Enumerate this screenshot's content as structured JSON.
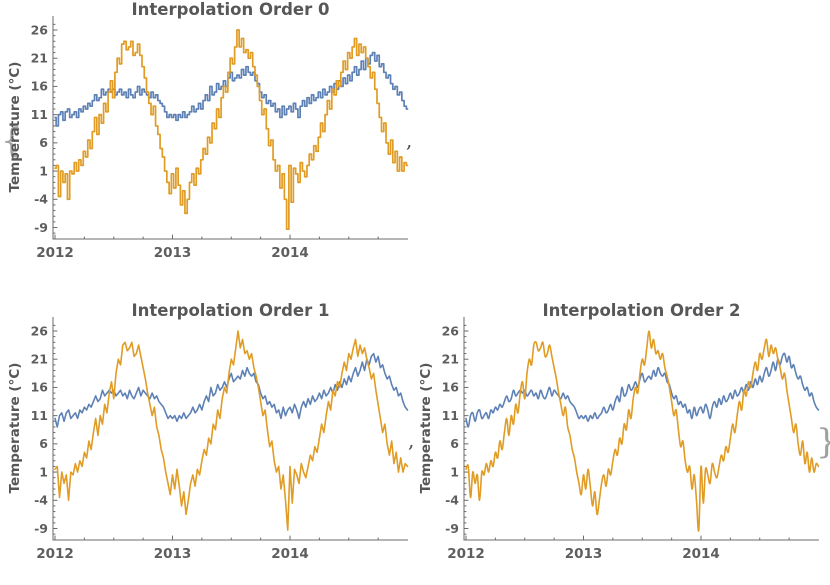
{
  "figure": {
    "background": "#ffffff",
    "open_brace": "{",
    "separator": ",",
    "close_brace": "}",
    "text_color": "#575757",
    "axis_color": "#6b6b6b"
  },
  "chart_data": {
    "type": "line",
    "charts": [
      {
        "title": "Interpolation Order 0",
        "interpolation": "step"
      },
      {
        "title": "Interpolation Order 1",
        "interpolation": "linear"
      },
      {
        "title": "Interpolation Order 2",
        "interpolation": "smooth"
      }
    ],
    "ylabel": "Temperature (°C)",
    "yticks": [
      -9,
      -4,
      1,
      6,
      11,
      16,
      21,
      26
    ],
    "xticks": [
      "2012",
      "2013",
      "2014"
    ],
    "x_range": [
      2012,
      2015
    ],
    "ylim": [
      -11,
      28
    ],
    "sampling": "weekly",
    "n_points": 157,
    "legend": "none",
    "grid": false,
    "series": [
      {
        "name": "series-blue",
        "color": "#5E81B5",
        "values": [
          10.5,
          9,
          11,
          11.5,
          10,
          11.5,
          12,
          10.5,
          11,
          11.5,
          10.5,
          12,
          11.5,
          12.5,
          12,
          13,
          12.5,
          13.5,
          14.5,
          13.5,
          14,
          15.5,
          14.5,
          15,
          15.5,
          15,
          15.5,
          14.5,
          15,
          15.5,
          14.5,
          15,
          14,
          15.5,
          14.5,
          14,
          15,
          16,
          14.5,
          15.5,
          15,
          14.5,
          14,
          15,
          14,
          14.5,
          13.5,
          13,
          12.5,
          11.5,
          10.5,
          11,
          10.5,
          11,
          10,
          11,
          10.5,
          11.5,
          10.5,
          11,
          11.5,
          12.5,
          11.5,
          12,
          13,
          12,
          13.5,
          14.5,
          13.5,
          16,
          14.5,
          15,
          16.5,
          15.5,
          16,
          17,
          16,
          17.5,
          18.5,
          17,
          17.5,
          18,
          17.5,
          19,
          18,
          19.5,
          18.5,
          18,
          18.5,
          17,
          16.5,
          15,
          14,
          14.5,
          13,
          13.5,
          12.5,
          13,
          11.5,
          12,
          10.5,
          12.5,
          11,
          12,
          12.5,
          11.5,
          13,
          12,
          10.5,
          12.5,
          13.5,
          12.5,
          14,
          13,
          14.5,
          13.5,
          14,
          15,
          14,
          15.5,
          14.5,
          15,
          16,
          15,
          16.5,
          15.5,
          17,
          16,
          17.5,
          16.5,
          18,
          17,
          18.5,
          19.5,
          18,
          19,
          20.5,
          19,
          21,
          20,
          21.5,
          22,
          20.5,
          21.5,
          19.5,
          20,
          18.5,
          17.5,
          18,
          16.5,
          15.5,
          16,
          14.5,
          15,
          13.5,
          12.5,
          12
        ]
      },
      {
        "name": "series-orange",
        "color": "#E09C24",
        "values": [
          1.5,
          2,
          -3.5,
          1,
          -1,
          0.5,
          -4,
          1,
          0.5,
          2.5,
          1,
          3,
          2,
          4.5,
          3.5,
          6.5,
          5,
          8,
          10.5,
          7.5,
          11,
          9.5,
          13,
          11.5,
          15,
          17,
          14,
          18.5,
          21,
          20,
          23.5,
          24,
          22.5,
          23,
          24,
          21.5,
          22,
          23.5,
          21.5,
          19.5,
          17.5,
          15,
          13,
          11,
          12.5,
          9,
          7.5,
          5,
          3.5,
          1,
          -1,
          -3,
          0.5,
          -2,
          1.5,
          -1.5,
          -5,
          -2.5,
          -6.5,
          -4,
          -1,
          0.5,
          -1.5,
          1.5,
          0.5,
          3,
          5,
          4,
          7,
          6,
          9.5,
          8.5,
          12,
          10.5,
          14,
          16,
          15,
          18.5,
          21,
          20,
          23,
          26,
          23,
          24.5,
          22,
          22.5,
          21,
          22,
          19.5,
          18,
          16,
          13.5,
          11,
          12,
          8.5,
          5.5,
          6.5,
          3,
          1,
          2,
          -2,
          0.5,
          -4,
          -9.3,
          2,
          -4.5,
          1.5,
          0.5,
          -1,
          2.5,
          1,
          0,
          2,
          4,
          3,
          5.5,
          4.5,
          7,
          9.5,
          8,
          11,
          13.5,
          12,
          15.5,
          14.5,
          17,
          16,
          18.5,
          20.5,
          19,
          22,
          21,
          23,
          24.5,
          21.5,
          23.5,
          22,
          23,
          21,
          19.5,
          17.5,
          18.5,
          15.5,
          13,
          10.5,
          8,
          9.5,
          6,
          4,
          6.5,
          2.5,
          4.5,
          1,
          3.5,
          1,
          2.5,
          2
        ]
      }
    ]
  }
}
